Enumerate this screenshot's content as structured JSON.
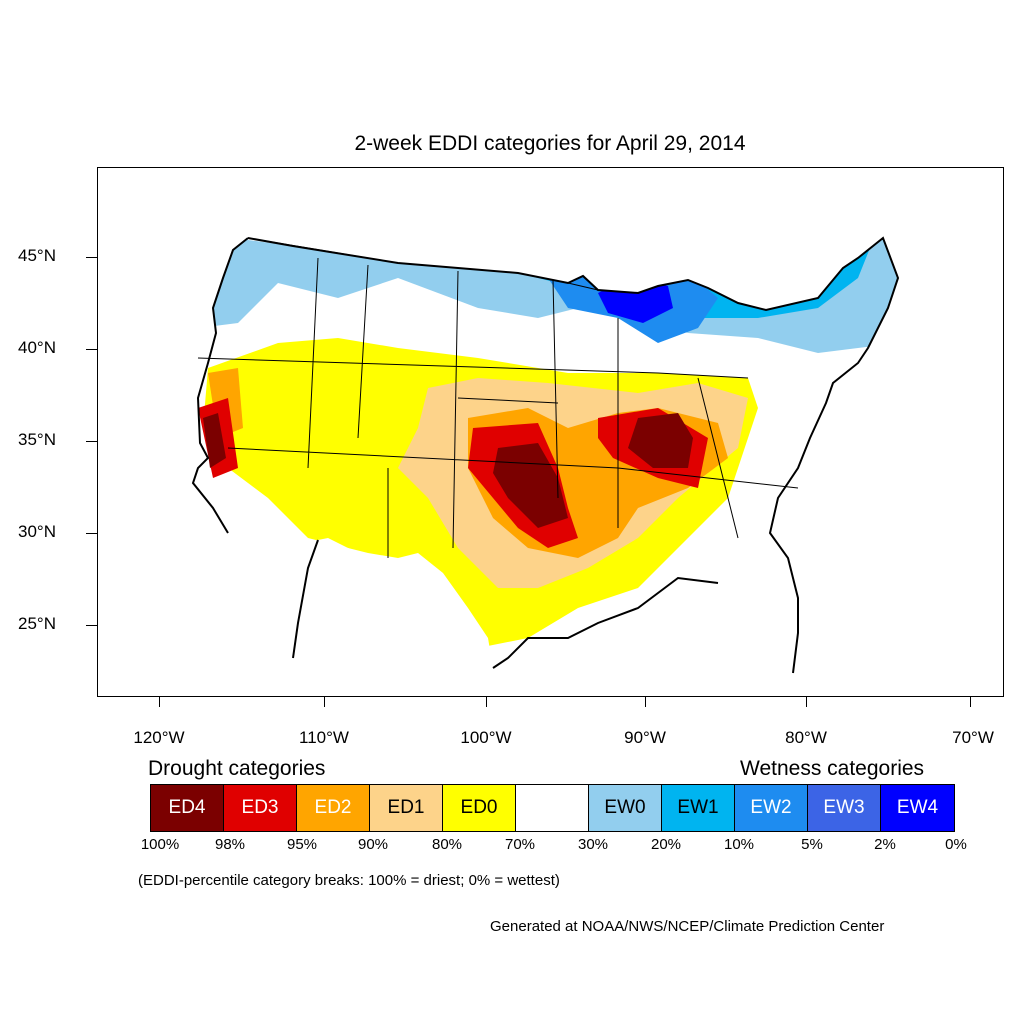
{
  "title": "2-week EDDI categories for April 29, 2014",
  "map": {
    "lat_labels": [
      "45°N",
      "40°N",
      "35°N",
      "30°N",
      "25°N"
    ],
    "lon_labels": [
      "120°W",
      "110°W",
      "100°W",
      "90°W",
      "80°W",
      "70°W"
    ],
    "colors": {
      "ED4": "#7b0000",
      "ED3": "#e00000",
      "ED2": "#ffa500",
      "ED1": "#fdd38a",
      "ED0": "#ffff00",
      "NONE": "#ffffff",
      "EW0": "#92ceee",
      "EW1": "#00b4f0",
      "EW2": "#1e8cf0",
      "EW3": "#3c64e6",
      "EW4": "#0000ff"
    }
  },
  "legend": {
    "drought_heading": "Drought categories",
    "wetness_heading": "Wetness categories",
    "categories": [
      {
        "label": "ED4",
        "color": "#7b0000",
        "text_color": "#ffffff"
      },
      {
        "label": "ED3",
        "color": "#e00000",
        "text_color": "#ffffff"
      },
      {
        "label": "ED2",
        "color": "#ffa500",
        "text_color": "#ffffff"
      },
      {
        "label": "ED1",
        "color": "#fdd38a",
        "text_color": "#000000"
      },
      {
        "label": "ED0",
        "color": "#ffff00",
        "text_color": "#000000"
      },
      {
        "label": "",
        "color": "#ffffff",
        "text_color": "#000000"
      },
      {
        "label": "EW0",
        "color": "#92ceee",
        "text_color": "#000000"
      },
      {
        "label": "EW1",
        "color": "#00b4f0",
        "text_color": "#000000"
      },
      {
        "label": "EW2",
        "color": "#1e8cf0",
        "text_color": "#ffffff"
      },
      {
        "label": "EW3",
        "color": "#3c64e6",
        "text_color": "#ffffff"
      },
      {
        "label": "EW4",
        "color": "#0000ff",
        "text_color": "#ffffff"
      }
    ],
    "breaks": [
      "100%",
      "98%",
      "95%",
      "90%",
      "80%",
      "70%",
      "30%",
      "20%",
      "10%",
      "5%",
      "2%",
      "0%"
    ],
    "note": "(EDDI-percentile category breaks: 100% = driest; 0% = wettest)"
  },
  "credit": "Generated at NOAA/NWS/NCEP/Climate Prediction Center"
}
